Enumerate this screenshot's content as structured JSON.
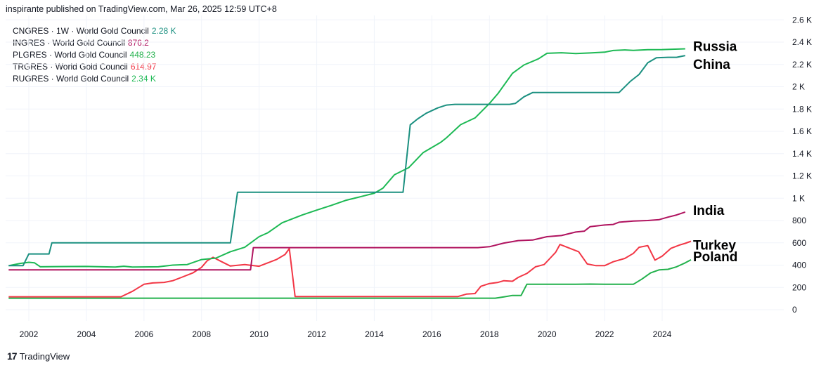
{
  "header": {
    "publish_text": "inspirante published on TradingView.com, Mar 26, 2025 12:59 UTC+8"
  },
  "legend": [
    {
      "name": "CNGRES · 1W · World Gold Council",
      "value": "2.28 K",
      "color": "#1b9080"
    },
    {
      "name": "INGRES · World Gold Council",
      "value": "876.2",
      "color": "#b0135f"
    },
    {
      "name": "PLGRES · World Gold Council",
      "value": "448.23",
      "color": "#22b14c"
    },
    {
      "name": "TRGRES · World Gold Council",
      "value": "614.97",
      "color": "#f23645"
    },
    {
      "name": "RUGRES · World Gold Council",
      "value": "2.34 K",
      "color": "#1db954"
    }
  ],
  "footer": {
    "logo_mark": "17",
    "logo_text": "TradingView"
  },
  "chart_data": {
    "type": "line",
    "x_unit": "year",
    "xlim": [
      2001.3,
      2025.9
    ],
    "ylim": [
      -60,
      2600
    ],
    "y_ticks": [
      {
        "value": 0,
        "label": "0"
      },
      {
        "value": 200,
        "label": "200"
      },
      {
        "value": 400,
        "label": "400"
      },
      {
        "value": 600,
        "label": "600"
      },
      {
        "value": 800,
        "label": "800"
      },
      {
        "value": 1000,
        "label": "1 K"
      },
      {
        "value": 1200,
        "label": "1.2 K"
      },
      {
        "value": 1400,
        "label": "1.4 K"
      },
      {
        "value": 1600,
        "label": "1.6 K"
      },
      {
        "value": 1800,
        "label": "1.8 K"
      },
      {
        "value": 2000,
        "label": "2 K"
      },
      {
        "value": 2200,
        "label": "2.2 K"
      },
      {
        "value": 2400,
        "label": "2.4 K"
      },
      {
        "value": 2600,
        "label": "2.6 K"
      }
    ],
    "x_ticks": [
      {
        "value": 2002,
        "label": "2002"
      },
      {
        "value": 2004,
        "label": "2004"
      },
      {
        "value": 2006,
        "label": "2006"
      },
      {
        "value": 2008,
        "label": "2008"
      },
      {
        "value": 2010,
        "label": "2010"
      },
      {
        "value": 2012,
        "label": "2012"
      },
      {
        "value": 2014,
        "label": "2014"
      },
      {
        "value": 2016,
        "label": "2016"
      },
      {
        "value": 2018,
        "label": "2018"
      },
      {
        "value": 2020,
        "label": "2020"
      },
      {
        "value": 2022,
        "label": "2022"
      },
      {
        "value": 2024,
        "label": "2024"
      }
    ],
    "grid": true,
    "series": [
      {
        "key": "china",
        "color": "#1b9080",
        "label": "China",
        "points": [
          [
            2001.3,
            395
          ],
          [
            2001.8,
            395
          ],
          [
            2002.0,
            500
          ],
          [
            2002.5,
            500
          ],
          [
            2002.7,
            500
          ],
          [
            2002.8,
            600
          ],
          [
            2009.0,
            600
          ],
          [
            2009.25,
            1054
          ],
          [
            2015.0,
            1054
          ],
          [
            2015.25,
            1658
          ],
          [
            2015.5,
            1710
          ],
          [
            2015.8,
            1762
          ],
          [
            2016.2,
            1810
          ],
          [
            2016.5,
            1835
          ],
          [
            2016.8,
            1842
          ],
          [
            2018.7,
            1842
          ],
          [
            2018.9,
            1850
          ],
          [
            2019.2,
            1910
          ],
          [
            2019.5,
            1948
          ],
          [
            2022.5,
            1948
          ],
          [
            2022.9,
            2050
          ],
          [
            2023.2,
            2110
          ],
          [
            2023.5,
            2215
          ],
          [
            2023.8,
            2260
          ],
          [
            2024.2,
            2264
          ],
          [
            2024.5,
            2264
          ],
          [
            2024.8,
            2280
          ]
        ]
      },
      {
        "key": "russia",
        "color": "#1db954",
        "label": "Russia",
        "points": [
          [
            2001.3,
            395
          ],
          [
            2001.7,
            415
          ],
          [
            2002.0,
            425
          ],
          [
            2002.2,
            420
          ],
          [
            2002.4,
            385
          ],
          [
            2003.0,
            387
          ],
          [
            2004.0,
            388
          ],
          [
            2005.0,
            383
          ],
          [
            2005.3,
            390
          ],
          [
            2005.6,
            383
          ],
          [
            2006.5,
            385
          ],
          [
            2007.0,
            400
          ],
          [
            2007.5,
            405
          ],
          [
            2008.0,
            450
          ],
          [
            2008.5,
            463
          ],
          [
            2009.0,
            520
          ],
          [
            2009.5,
            560
          ],
          [
            2010.0,
            655
          ],
          [
            2010.3,
            690
          ],
          [
            2010.8,
            780
          ],
          [
            2011.5,
            850
          ],
          [
            2012.0,
            893
          ],
          [
            2012.5,
            935
          ],
          [
            2013.0,
            980
          ],
          [
            2013.5,
            1012
          ],
          [
            2014.0,
            1045
          ],
          [
            2014.3,
            1090
          ],
          [
            2014.7,
            1210
          ],
          [
            2015.2,
            1275
          ],
          [
            2015.7,
            1410
          ],
          [
            2016.3,
            1500
          ],
          [
            2016.5,
            1540
          ],
          [
            2017.0,
            1660
          ],
          [
            2017.5,
            1720
          ],
          [
            2018.0,
            1850
          ],
          [
            2018.3,
            1940
          ],
          [
            2018.8,
            2120
          ],
          [
            2019.2,
            2195
          ],
          [
            2019.7,
            2250
          ],
          [
            2020.0,
            2300
          ],
          [
            2020.5,
            2305
          ],
          [
            2021.0,
            2298
          ],
          [
            2021.5,
            2303
          ],
          [
            2022.0,
            2310
          ],
          [
            2022.3,
            2325
          ],
          [
            2022.7,
            2330
          ],
          [
            2023.0,
            2326
          ],
          [
            2023.5,
            2332
          ],
          [
            2024.0,
            2333
          ],
          [
            2024.8,
            2340
          ]
        ]
      },
      {
        "key": "india",
        "color": "#b0135f",
        "label": "India",
        "points": [
          [
            2001.3,
            358
          ],
          [
            2009.7,
            358
          ],
          [
            2009.8,
            557
          ],
          [
            2017.6,
            557
          ],
          [
            2018.0,
            565
          ],
          [
            2018.5,
            598
          ],
          [
            2019.0,
            620
          ],
          [
            2019.5,
            625
          ],
          [
            2020.0,
            655
          ],
          [
            2020.5,
            665
          ],
          [
            2021.0,
            697
          ],
          [
            2021.3,
            705
          ],
          [
            2021.5,
            745
          ],
          [
            2022.0,
            760
          ],
          [
            2022.3,
            765
          ],
          [
            2022.5,
            785
          ],
          [
            2023.0,
            795
          ],
          [
            2023.5,
            800
          ],
          [
            2023.9,
            808
          ],
          [
            2024.2,
            830
          ],
          [
            2024.5,
            850
          ],
          [
            2024.8,
            876
          ]
        ]
      },
      {
        "key": "turkey",
        "color": "#f23645",
        "label": "Turkey",
        "points": [
          [
            2001.3,
            116
          ],
          [
            2005.2,
            116
          ],
          [
            2005.6,
            165
          ],
          [
            2006.0,
            228
          ],
          [
            2006.3,
            240
          ],
          [
            2006.7,
            245
          ],
          [
            2007.0,
            260
          ],
          [
            2007.3,
            290
          ],
          [
            2007.7,
            330
          ],
          [
            2008.0,
            380
          ],
          [
            2008.2,
            440
          ],
          [
            2008.4,
            470
          ],
          [
            2008.7,
            430
          ],
          [
            2009.0,
            392
          ],
          [
            2009.5,
            405
          ],
          [
            2010.0,
            390
          ],
          [
            2010.3,
            420
          ],
          [
            2010.6,
            450
          ],
          [
            2010.9,
            495
          ],
          [
            2011.05,
            548
          ],
          [
            2011.25,
            118
          ],
          [
            2016.9,
            118
          ],
          [
            2017.2,
            140
          ],
          [
            2017.5,
            145
          ],
          [
            2017.7,
            210
          ],
          [
            2018.0,
            235
          ],
          [
            2018.3,
            245
          ],
          [
            2018.5,
            260
          ],
          [
            2018.8,
            255
          ],
          [
            2019.0,
            290
          ],
          [
            2019.3,
            325
          ],
          [
            2019.6,
            385
          ],
          [
            2019.9,
            405
          ],
          [
            2020.1,
            460
          ],
          [
            2020.3,
            515
          ],
          [
            2020.45,
            585
          ],
          [
            2020.8,
            550
          ],
          [
            2021.1,
            520
          ],
          [
            2021.4,
            410
          ],
          [
            2021.7,
            395
          ],
          [
            2022.0,
            395
          ],
          [
            2022.3,
            430
          ],
          [
            2022.7,
            460
          ],
          [
            2023.0,
            505
          ],
          [
            2023.2,
            560
          ],
          [
            2023.5,
            575
          ],
          [
            2023.75,
            445
          ],
          [
            2024.0,
            480
          ],
          [
            2024.3,
            550
          ],
          [
            2024.6,
            580
          ],
          [
            2024.8,
            595
          ],
          [
            2025.0,
            614
          ]
        ]
      },
      {
        "key": "poland",
        "color": "#22b14c",
        "label": "Poland",
        "points": [
          [
            2001.3,
            103
          ],
          [
            2018.2,
            103
          ],
          [
            2018.5,
            115
          ],
          [
            2018.8,
            128
          ],
          [
            2019.1,
            128
          ],
          [
            2019.3,
            228
          ],
          [
            2021.0,
            228
          ],
          [
            2021.5,
            230
          ],
          [
            2022.0,
            228
          ],
          [
            2023.0,
            228
          ],
          [
            2023.3,
            275
          ],
          [
            2023.6,
            330
          ],
          [
            2023.9,
            358
          ],
          [
            2024.2,
            362
          ],
          [
            2024.5,
            385
          ],
          [
            2024.8,
            420
          ],
          [
            2025.0,
            448
          ]
        ]
      }
    ],
    "end_labels": [
      {
        "series": "russia",
        "text": "Russia"
      },
      {
        "series": "china",
        "text": "China"
      },
      {
        "series": "india",
        "text": "India"
      },
      {
        "series": "turkey",
        "text": "Turkey"
      },
      {
        "series": "poland",
        "text": "Poland"
      }
    ]
  }
}
